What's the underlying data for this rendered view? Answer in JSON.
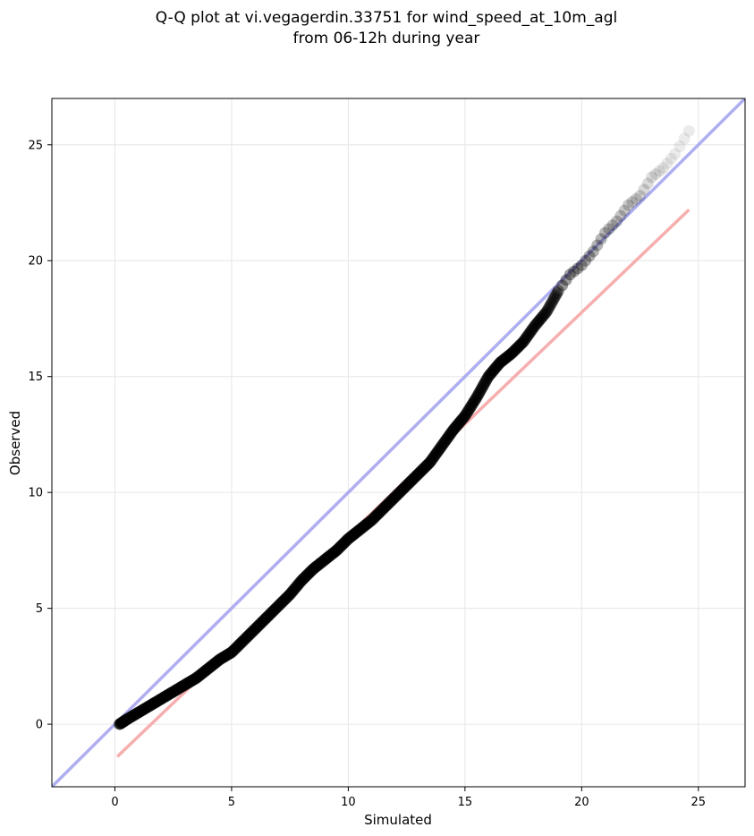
{
  "chart_data": {
    "type": "scatter",
    "title": [
      "Q-Q plot at vi.vegagerdin.33751 for wind_speed_at_10m_agl",
      "from 06-12h during year"
    ],
    "xlabel": "Simulated",
    "ylabel": "Observed",
    "xlim": [
      -2.7,
      27.0
    ],
    "ylim": [
      -2.7,
      27.0
    ],
    "xticks": [
      0,
      5,
      10,
      15,
      20,
      25
    ],
    "yticks": [
      0,
      5,
      10,
      15,
      20,
      25
    ],
    "grid": true,
    "legend": "none",
    "reference_line": {
      "description": "1:1",
      "color": "#a5a5f0",
      "slope": 1,
      "intercept": 0
    },
    "fit_line": {
      "color": "#f5a5a5",
      "x": [
        0.1,
        24.6
      ],
      "y": [
        -1.4,
        22.2
      ]
    },
    "quantile_points": {
      "color": "#000000",
      "x": [
        0.2,
        0.5,
        1.0,
        1.5,
        2.0,
        2.5,
        3.0,
        3.5,
        4.0,
        4.5,
        5.0,
        5.5,
        6.0,
        6.5,
        7.0,
        7.5,
        8.0,
        8.5,
        9.0,
        9.5,
        10.0,
        10.5,
        11.0,
        11.5,
        12.0,
        12.5,
        13.0,
        13.5,
        14.0,
        14.5,
        15.0,
        15.5,
        16.0,
        16.5,
        17.0,
        17.5,
        18.0,
        18.5,
        19.0,
        19.5,
        20.0,
        20.5,
        21.0,
        21.5,
        22.0,
        22.5,
        23.0,
        23.5,
        24.0,
        24.6
      ],
      "y": [
        0.0,
        0.2,
        0.5,
        0.8,
        1.1,
        1.4,
        1.7,
        2.0,
        2.4,
        2.8,
        3.1,
        3.6,
        4.1,
        4.6,
        5.1,
        5.6,
        6.2,
        6.7,
        7.1,
        7.5,
        8.0,
        8.4,
        8.8,
        9.3,
        9.8,
        10.3,
        10.8,
        11.3,
        12.0,
        12.7,
        13.3,
        14.1,
        15.0,
        15.6,
        16.0,
        16.5,
        17.2,
        17.8,
        18.7,
        19.4,
        19.8,
        20.4,
        21.2,
        21.7,
        22.4,
        22.8,
        23.6,
        24.0,
        24.6,
        25.6
      ]
    }
  }
}
